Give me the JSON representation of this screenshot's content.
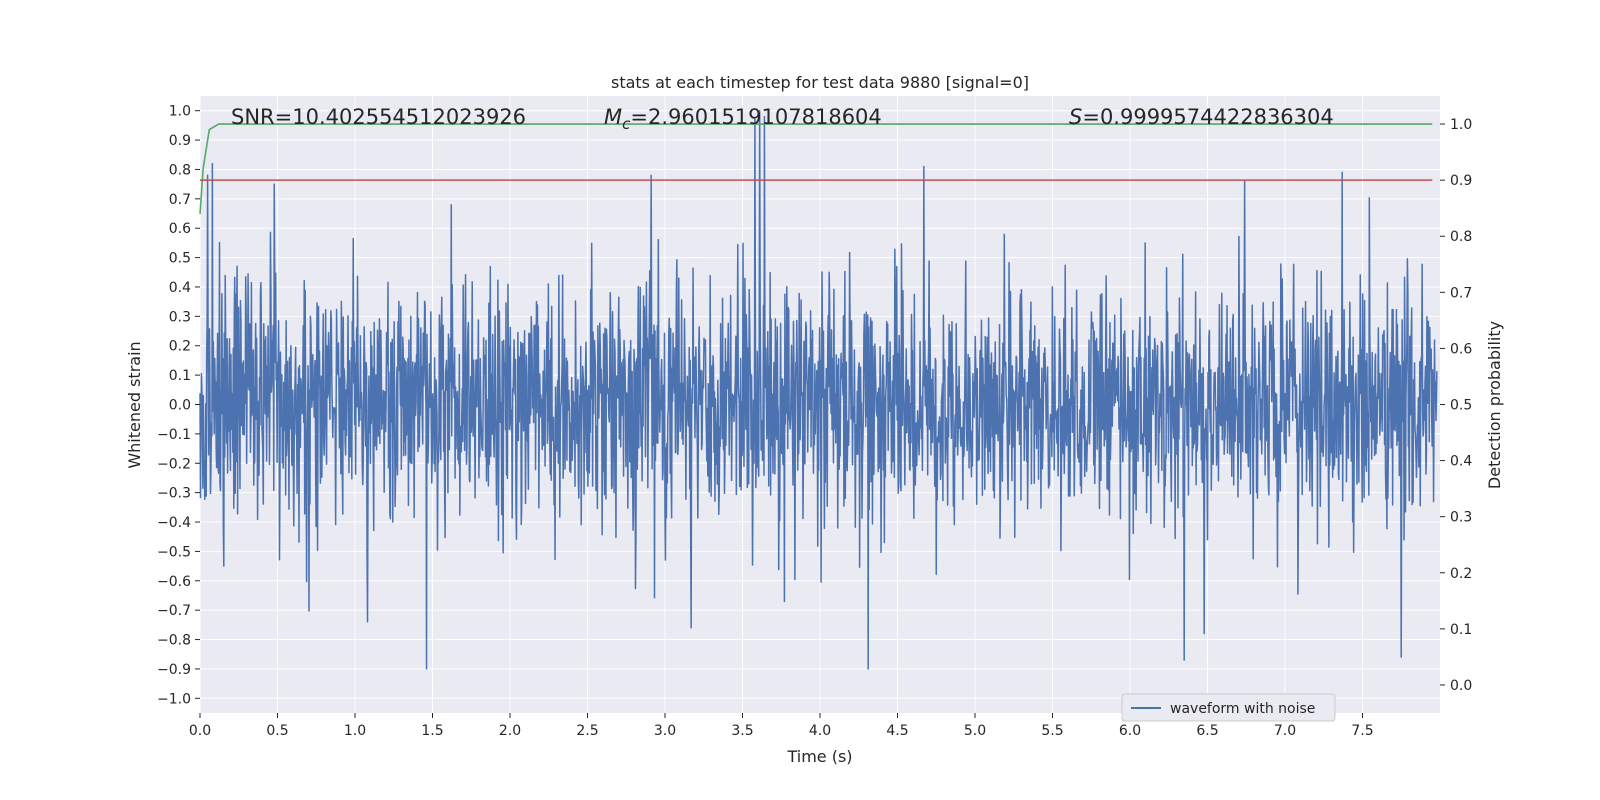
{
  "chart_data": {
    "type": "line",
    "title": "stats at each timestep for test data 9880 [signal=0]",
    "xlabel": "Time (s)",
    "ylabel_left": "Whitened strain",
    "ylabel_right": "Detection probability",
    "xlim": [
      0.0,
      8.0
    ],
    "ylim_left": [
      -1.05,
      1.05
    ],
    "ylim_right": [
      -0.05,
      1.05
    ],
    "x_ticks": [
      "0.0",
      "0.5",
      "1.0",
      "1.5",
      "2.0",
      "2.5",
      "3.0",
      "3.5",
      "4.0",
      "4.5",
      "5.0",
      "5.5",
      "6.0",
      "6.5",
      "7.0",
      "7.5"
    ],
    "y_ticks_left": [
      "−1.0",
      "−0.9",
      "−0.8",
      "−0.7",
      "−0.6",
      "−0.5",
      "−0.4",
      "−0.3",
      "−0.2",
      "−0.1",
      "0.0",
      "0.1",
      "0.2",
      "0.3",
      "0.4",
      "0.5",
      "0.6",
      "0.7",
      "0.8",
      "0.9",
      "1.0"
    ],
    "y_ticks_right": [
      "0.0",
      "0.1",
      "0.2",
      "0.3",
      "0.4",
      "0.5",
      "0.6",
      "0.7",
      "0.8",
      "0.9",
      "1.0"
    ],
    "grid": true,
    "legend_position": "lower-right",
    "legend": [
      "waveform with noise"
    ],
    "annotations": {
      "snr": "SNR=10.402554512023926",
      "mc_symbol": "M",
      "mc_sub": "c",
      "mc_value": "=2.9601519107818604",
      "s_symbol": "S",
      "s_value": "=0.9999574422836304"
    },
    "series": [
      {
        "name": "waveform with noise",
        "axis": "left",
        "color": "#4c72b0",
        "description": "dense noise waveform spanning roughly -0.9 to 1.0",
        "spikes_positive": [
          [
            0.05,
            0.78
          ],
          [
            0.08,
            0.82
          ],
          [
            0.48,
            0.75
          ],
          [
            1.62,
            0.68
          ],
          [
            2.91,
            0.78
          ],
          [
            3.58,
            0.97
          ],
          [
            3.61,
            1.0
          ],
          [
            3.64,
            0.98
          ],
          [
            4.67,
            0.81
          ],
          [
            6.74,
            0.76
          ],
          [
            7.37,
            0.79
          ]
        ],
        "spikes_negative": [
          [
            1.46,
            -0.9
          ],
          [
            4.31,
            -0.9
          ],
          [
            6.35,
            -0.87
          ],
          [
            6.48,
            -0.78
          ],
          [
            7.75,
            -0.86
          ],
          [
            3.17,
            -0.76
          ],
          [
            1.08,
            -0.74
          ]
        ]
      },
      {
        "axis": "right",
        "color": "#55a868",
        "x": [
          0.0,
          0.02,
          0.06,
          0.12,
          0.2,
          7.95
        ],
        "values": [
          0.84,
          0.92,
          0.99,
          1.0,
          1.0,
          1.0
        ]
      },
      {
        "axis": "right",
        "color": "#c44e52",
        "x": [
          0.0,
          7.95
        ],
        "values": [
          0.9,
          0.9
        ]
      }
    ],
    "colors": {
      "background": "#eaeaf2",
      "grid": "#ffffff",
      "waveform": "#4c72b0",
      "probability": "#55a868",
      "threshold": "#c44e52"
    }
  }
}
